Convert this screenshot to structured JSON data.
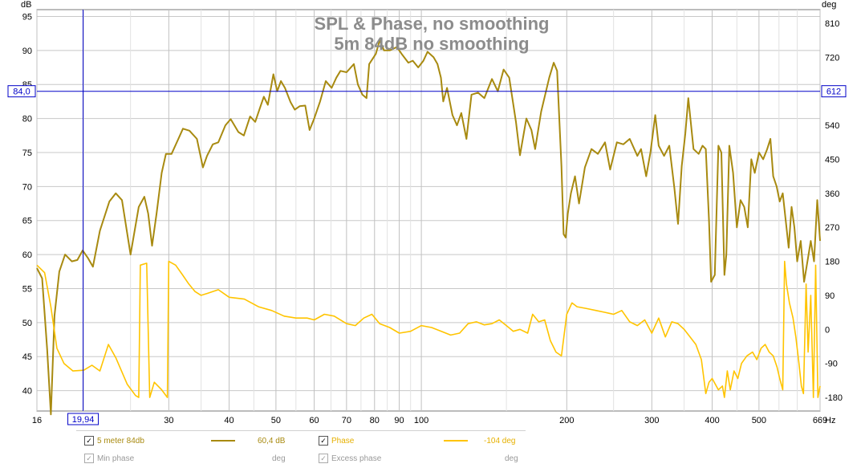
{
  "chart_data": {
    "type": "line",
    "title": "SPL & Phase, no smoothing",
    "subtitle": "5m 84dB no smoothing",
    "xlabel": "Hz",
    "ylabel_left": "dB",
    "ylabel_right": "deg",
    "x_scale": "log",
    "xlim": [
      16,
      669
    ],
    "ylim_left": [
      37,
      96
    ],
    "ylim_right": [
      -216,
      846
    ],
    "grid": true,
    "x_ticks": [
      {
        "v": 16,
        "label": "16"
      },
      {
        "v": 30,
        "label": "30"
      },
      {
        "v": 40,
        "label": "40"
      },
      {
        "v": 50,
        "label": "50"
      },
      {
        "v": 60,
        "label": "60"
      },
      {
        "v": 70,
        "label": "70"
      },
      {
        "v": 80,
        "label": "80"
      },
      {
        "v": 90,
        "label": "90"
      },
      {
        "v": 100,
        "label": "100"
      },
      {
        "v": 200,
        "label": "200"
      },
      {
        "v": 300,
        "label": "300"
      },
      {
        "v": 400,
        "label": "400"
      },
      {
        "v": 500,
        "label": "500"
      },
      {
        "v": 669,
        "label": "669"
      }
    ],
    "x_minor_ticks": [
      20,
      25,
      35,
      45,
      55,
      65,
      75,
      85,
      95,
      150,
      250,
      350,
      450,
      550,
      600
    ],
    "y_ticks_left": [
      40,
      45,
      50,
      55,
      60,
      65,
      70,
      75,
      80,
      85,
      90,
      95
    ],
    "y_ticks_right": [
      -180,
      -90,
      0,
      90,
      180,
      270,
      360,
      450,
      540,
      630,
      720,
      810
    ],
    "cursor": {
      "x": 19.94,
      "x_label": "19,94",
      "y_left": 84.0,
      "y_left_label": "84,0",
      "y_right_label": "612"
    },
    "series": [
      {
        "name": "5 meter 84db",
        "axis": "left",
        "color": "#a88a10",
        "points": [
          [
            16,
            58
          ],
          [
            16.4,
            56.5
          ],
          [
            16.8,
            46
          ],
          [
            17.1,
            36.5
          ],
          [
            17.4,
            51
          ],
          [
            17.8,
            57.5
          ],
          [
            18.3,
            60
          ],
          [
            18.9,
            59
          ],
          [
            19.4,
            59.2
          ],
          [
            19.9,
            60.6
          ],
          [
            20.4,
            59.5
          ],
          [
            20.9,
            58.2
          ],
          [
            21.6,
            63.5
          ],
          [
            22.6,
            67.8
          ],
          [
            23.3,
            69
          ],
          [
            24,
            68
          ],
          [
            25,
            60
          ],
          [
            26,
            67
          ],
          [
            26.7,
            68.5
          ],
          [
            27.2,
            66
          ],
          [
            27.7,
            61.3
          ],
          [
            28.3,
            66
          ],
          [
            29,
            72
          ],
          [
            29.6,
            74.8
          ],
          [
            30.4,
            74.8
          ],
          [
            31.4,
            77
          ],
          [
            32.1,
            78.5
          ],
          [
            33.1,
            78.2
          ],
          [
            34.3,
            77
          ],
          [
            35.3,
            72.8
          ],
          [
            36,
            74.5
          ],
          [
            37,
            76.2
          ],
          [
            38,
            76.5
          ],
          [
            39.3,
            79
          ],
          [
            40.3,
            79.9
          ],
          [
            41.8,
            78
          ],
          [
            42.9,
            77.5
          ],
          [
            44.2,
            80.3
          ],
          [
            45.3,
            79.5
          ],
          [
            46.3,
            81.5
          ],
          [
            47.2,
            83.2
          ],
          [
            48.1,
            82
          ],
          [
            49.4,
            86.5
          ],
          [
            50.3,
            84
          ],
          [
            51.2,
            85.5
          ],
          [
            52.2,
            84.5
          ],
          [
            53.6,
            82.4
          ],
          [
            54.7,
            81.3
          ],
          [
            56,
            81.8
          ],
          [
            57.5,
            81.9
          ],
          [
            58.7,
            78.3
          ],
          [
            60,
            80
          ],
          [
            61.7,
            82.5
          ],
          [
            63.4,
            85.5
          ],
          [
            65.2,
            84.5
          ],
          [
            66.7,
            86
          ],
          [
            68,
            87
          ],
          [
            70,
            86.8
          ],
          [
            72.5,
            88
          ],
          [
            73.9,
            85
          ],
          [
            75.5,
            83.5
          ],
          [
            77,
            83
          ],
          [
            78,
            88
          ],
          [
            80.5,
            89.5
          ],
          [
            82,
            91.5
          ],
          [
            83.7,
            90
          ],
          [
            86,
            90
          ],
          [
            89,
            90.5
          ],
          [
            91,
            89.5
          ],
          [
            94,
            88.2
          ],
          [
            96,
            88.5
          ],
          [
            98.5,
            87.5
          ],
          [
            101,
            88.5
          ],
          [
            103,
            89.8
          ],
          [
            106,
            89
          ],
          [
            108,
            88
          ],
          [
            109.8,
            86
          ],
          [
            111,
            82.5
          ],
          [
            113,
            84.5
          ],
          [
            116,
            80.5
          ],
          [
            118.5,
            79
          ],
          [
            121,
            80.8
          ],
          [
            124,
            77
          ],
          [
            127,
            83.5
          ],
          [
            131,
            83.8
          ],
          [
            135,
            83
          ],
          [
            140,
            85.8
          ],
          [
            144,
            84
          ],
          [
            148,
            87.2
          ],
          [
            152,
            86
          ],
          [
            157,
            79.5
          ],
          [
            160,
            74.6
          ],
          [
            165,
            80
          ],
          [
            169,
            78.3
          ],
          [
            172,
            75.5
          ],
          [
            177,
            81
          ],
          [
            184,
            86
          ],
          [
            188,
            88.2
          ],
          [
            191,
            87
          ],
          [
            193,
            80
          ],
          [
            195,
            73
          ],
          [
            197,
            63
          ],
          [
            199,
            62.5
          ],
          [
            201,
            66
          ],
          [
            204,
            69
          ],
          [
            208,
            71.5
          ],
          [
            212,
            67.5
          ],
          [
            218,
            72.8
          ],
          [
            225,
            75.5
          ],
          [
            232,
            74.8
          ],
          [
            240,
            76.5
          ],
          [
            246,
            72.5
          ],
          [
            254,
            76.5
          ],
          [
            262,
            76.2
          ],
          [
            270,
            77
          ],
          [
            280,
            74.5
          ],
          [
            285,
            75.5
          ],
          [
            292,
            71.5
          ],
          [
            298,
            75
          ],
          [
            305,
            80.5
          ],
          [
            310,
            76
          ],
          [
            318,
            74.5
          ],
          [
            326,
            76
          ],
          [
            334,
            69.8
          ],
          [
            340,
            64.5
          ],
          [
            346,
            73
          ],
          [
            352,
            77.8
          ],
          [
            357,
            83
          ],
          [
            366,
            75.5
          ],
          [
            375,
            74.8
          ],
          [
            382,
            76
          ],
          [
            388,
            75.5
          ],
          [
            394,
            65
          ],
          [
            398,
            56
          ],
          [
            405,
            57
          ],
          [
            412,
            76
          ],
          [
            418,
            75
          ],
          [
            424,
            57
          ],
          [
            428,
            60
          ],
          [
            434,
            76
          ],
          [
            442,
            72
          ],
          [
            450,
            64
          ],
          [
            458,
            68
          ],
          [
            466,
            67
          ],
          [
            474,
            64
          ],
          [
            482,
            74
          ],
          [
            490,
            72
          ],
          [
            500,
            75
          ],
          [
            510,
            74
          ],
          [
            520,
            75.5
          ],
          [
            528,
            77
          ],
          [
            535,
            71.5
          ],
          [
            544,
            70
          ],
          [
            552,
            67.8
          ],
          [
            560,
            69
          ],
          [
            568,
            65
          ],
          [
            576,
            61
          ],
          [
            584,
            67
          ],
          [
            592,
            64
          ],
          [
            600,
            59
          ],
          [
            610,
            62
          ],
          [
            620,
            56
          ],
          [
            630,
            59
          ],
          [
            640,
            62
          ],
          [
            650,
            59
          ],
          [
            660,
            68
          ],
          [
            669,
            62
          ]
        ]
      },
      {
        "name": "Phase",
        "axis": "right",
        "color": "#ffc400",
        "points": [
          [
            16,
            170
          ],
          [
            16.6,
            150
          ],
          [
            17.1,
            60
          ],
          [
            17.6,
            -50
          ],
          [
            18.2,
            -90
          ],
          [
            19,
            -110
          ],
          [
            20,
            -108
          ],
          [
            20.8,
            -95
          ],
          [
            21.6,
            -110
          ],
          [
            22.5,
            -40
          ],
          [
            23.3,
            -75
          ],
          [
            24.6,
            -145
          ],
          [
            25.6,
            -175
          ],
          [
            26,
            -180
          ],
          [
            26.2,
            170
          ],
          [
            27,
            175
          ],
          [
            27.4,
            -180
          ],
          [
            28,
            -140
          ],
          [
            29,
            -160
          ],
          [
            29.8,
            -180
          ],
          [
            30,
            180
          ],
          [
            31,
            170
          ],
          [
            32,
            145
          ],
          [
            33,
            120
          ],
          [
            34,
            100
          ],
          [
            35,
            90
          ],
          [
            36,
            95
          ],
          [
            38,
            105
          ],
          [
            40,
            85
          ],
          [
            43,
            80
          ],
          [
            46,
            60
          ],
          [
            49,
            50
          ],
          [
            52,
            35
          ],
          [
            55,
            30
          ],
          [
            58,
            30
          ],
          [
            60,
            25
          ],
          [
            63,
            40
          ],
          [
            66,
            35
          ],
          [
            70,
            15
          ],
          [
            73,
            10
          ],
          [
            76,
            30
          ],
          [
            79,
            40
          ],
          [
            82,
            15
          ],
          [
            86,
            5
          ],
          [
            90,
            -10
          ],
          [
            95,
            -5
          ],
          [
            100,
            10
          ],
          [
            105,
            5
          ],
          [
            110,
            -5
          ],
          [
            115,
            -15
          ],
          [
            120,
            -10
          ],
          [
            125,
            15
          ],
          [
            130,
            20
          ],
          [
            135,
            12
          ],
          [
            140,
            15
          ],
          [
            145,
            25
          ],
          [
            150,
            10
          ],
          [
            155,
            -5
          ],
          [
            160,
            0
          ],
          [
            166,
            -10
          ],
          [
            170,
            40
          ],
          [
            175,
            20
          ],
          [
            180,
            25
          ],
          [
            185,
            -30
          ],
          [
            190,
            -60
          ],
          [
            195,
            -70
          ],
          [
            200,
            40
          ],
          [
            205,
            70
          ],
          [
            210,
            60
          ],
          [
            220,
            55
          ],
          [
            230,
            50
          ],
          [
            240,
            45
          ],
          [
            250,
            40
          ],
          [
            260,
            50
          ],
          [
            270,
            20
          ],
          [
            280,
            10
          ],
          [
            290,
            25
          ],
          [
            300,
            -10
          ],
          [
            310,
            30
          ],
          [
            320,
            -20
          ],
          [
            330,
            20
          ],
          [
            340,
            15
          ],
          [
            350,
            0
          ],
          [
            360,
            -20
          ],
          [
            370,
            -40
          ],
          [
            380,
            -80
          ],
          [
            388,
            -170
          ],
          [
            394,
            -140
          ],
          [
            400,
            -130
          ],
          [
            412,
            -160
          ],
          [
            420,
            -150
          ],
          [
            424,
            -180
          ],
          [
            430,
            -110
          ],
          [
            436,
            -160
          ],
          [
            444,
            -110
          ],
          [
            452,
            -130
          ],
          [
            460,
            -90
          ],
          [
            472,
            -70
          ],
          [
            485,
            -60
          ],
          [
            495,
            -80
          ],
          [
            505,
            -50
          ],
          [
            515,
            -40
          ],
          [
            525,
            -60
          ],
          [
            535,
            -70
          ],
          [
            545,
            -100
          ],
          [
            552,
            -130
          ],
          [
            560,
            -160
          ],
          [
            565,
            180
          ],
          [
            570,
            120
          ],
          [
            578,
            70
          ],
          [
            588,
            30
          ],
          [
            596,
            -20
          ],
          [
            605,
            -90
          ],
          [
            612,
            -150
          ],
          [
            618,
            -170
          ],
          [
            626,
            120
          ],
          [
            632,
            -60
          ],
          [
            640,
            90
          ],
          [
            648,
            -180
          ],
          [
            655,
            170
          ],
          [
            662,
            -180
          ],
          [
            669,
            -150
          ]
        ]
      }
    ],
    "legend": {
      "items": [
        {
          "label": "5 meter 84db",
          "value": "60,4 dB",
          "checked": true,
          "color": "#a88a10",
          "enabled": true
        },
        {
          "label": "Phase",
          "value": "-104 deg",
          "checked": true,
          "color": "#ffc400",
          "enabled": true
        },
        {
          "label": "Min phase",
          "value": "deg",
          "checked": true,
          "color": "#999999",
          "enabled": false
        },
        {
          "label": "Excess phase",
          "value": "deg",
          "checked": true,
          "color": "#999999",
          "enabled": false
        }
      ]
    }
  }
}
